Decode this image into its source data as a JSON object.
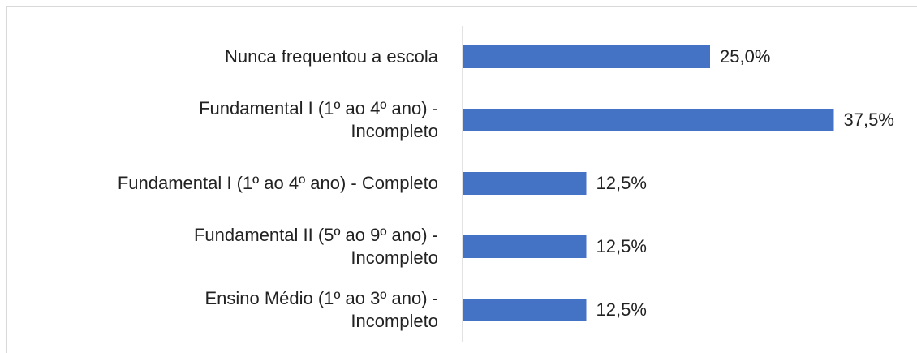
{
  "chart_data": {
    "type": "barh",
    "categories": [
      "Nunca frequentou a escola",
      "Fundamental I (1º ao 4º ano) -\nIncompleto",
      "Fundamental I (1º ao 4º ano) - Completo",
      "Fundamental II (5º ao 9º ano) -\nIncompleto",
      "Ensino Médio (1º ao 3º ano) -\nIncompleto"
    ],
    "values": [
      25,
      37.5,
      12.5,
      12.5,
      12.5
    ],
    "value_labels": [
      "25,0%",
      "37,5%",
      "12,5%",
      "12,5%",
      "12,5%"
    ],
    "color": "#4472c4"
  }
}
